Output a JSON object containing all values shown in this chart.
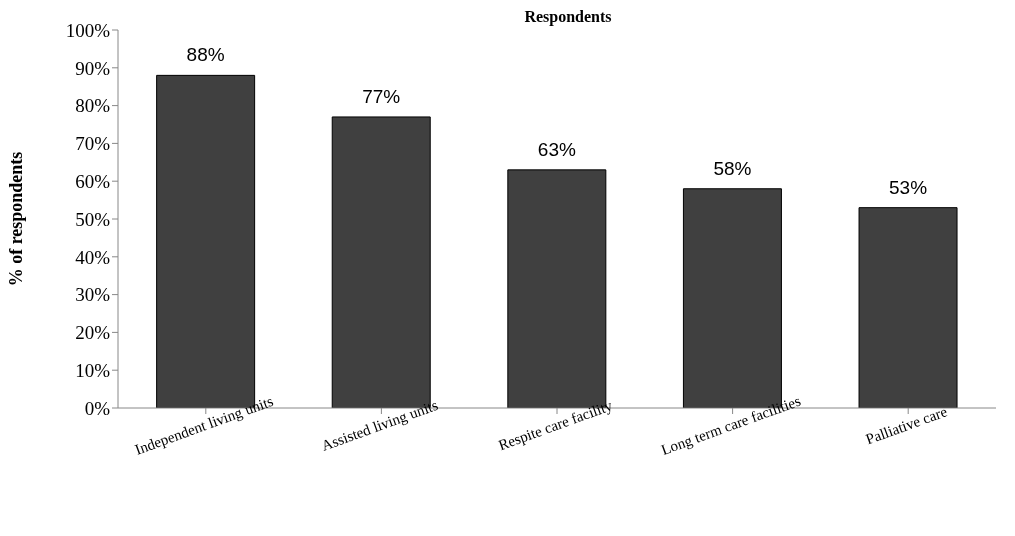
{
  "chart_data": {
    "type": "bar",
    "title": "Respondents",
    "ylabel": "%  of respondents",
    "categories": [
      "Independent living units",
      "Assisted living units",
      "Respite care facility",
      "Long term care facilities",
      "Palliative care"
    ],
    "values": [
      88,
      77,
      63,
      58,
      53
    ],
    "color": "#404040",
    "ylim": [
      0,
      100
    ],
    "yticks": [
      {
        "value": 0,
        "label": "0%"
      },
      {
        "value": 10,
        "label": "10%"
      },
      {
        "value": 20,
        "label": "20%"
      },
      {
        "value": 30,
        "label": "30%"
      },
      {
        "value": 40,
        "label": "40%"
      },
      {
        "value": 50,
        "label": "50%"
      },
      {
        "value": 60,
        "label": "60%"
      },
      {
        "value": 70,
        "label": "70%"
      },
      {
        "value": 80,
        "label": "80%"
      },
      {
        "value": 90,
        "label": "90%"
      },
      {
        "value": 100,
        "label": "100%"
      }
    ],
    "value_labels": [
      "88%",
      "77%",
      "63%",
      "58%",
      "53%"
    ],
    "grid": false,
    "legend": false
  }
}
